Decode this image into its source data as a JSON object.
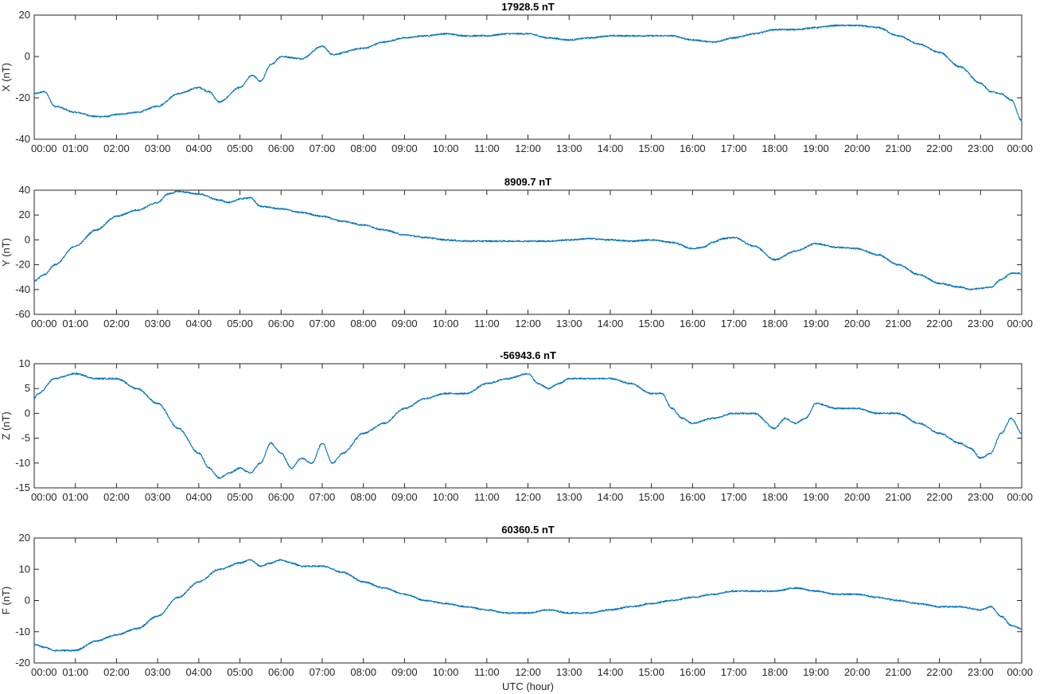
{
  "x_tick_labels": [
    "00:00",
    "01:00",
    "02:00",
    "03:00",
    "04:00",
    "05:00",
    "06:00",
    "07:00",
    "08:00",
    "09:00",
    "10:00",
    "11:00",
    "12:00",
    "13:00",
    "14:00",
    "15:00",
    "16:00",
    "17:00",
    "18:00",
    "19:00",
    "20:00",
    "21:00",
    "22:00",
    "23:00",
    "00:00"
  ],
  "xlabel": "UTC (hour)",
  "line_color": "#0072BD",
  "chart_data": [
    {
      "type": "line",
      "title": "17928.5 nT",
      "ylabel": "X (nT)",
      "xlim": [
        0,
        24
      ],
      "ylim": [
        -40,
        20
      ],
      "yticks": [
        -40,
        -20,
        0,
        20
      ],
      "x": [
        0,
        0.25,
        0.5,
        1,
        1.5,
        1.75,
        2,
        2.5,
        3,
        3.5,
        4,
        4.25,
        4.5,
        5,
        5.3,
        5.5,
        5.75,
        6,
        6.5,
        7,
        7.25,
        8,
        8.5,
        9,
        9.5,
        10,
        10.5,
        11,
        11.5,
        12,
        12.5,
        13,
        13.5,
        14,
        14.5,
        15,
        15.5,
        16,
        16.5,
        17,
        17.5,
        18,
        18.5,
        19,
        19.5,
        20,
        20.5,
        21,
        21.5,
        22,
        22.5,
        23,
        23.25,
        23.5,
        23.75,
        24
      ],
      "y": [
        -18,
        -17,
        -24,
        -27,
        -29,
        -29,
        -28,
        -27,
        -24,
        -18,
        -15,
        -17,
        -22,
        -15,
        -9,
        -12,
        -4,
        0,
        -1,
        5,
        1,
        4,
        7,
        9,
        10,
        11,
        10,
        10,
        11,
        11,
        9,
        8,
        9,
        10,
        10,
        10,
        10,
        8,
        7,
        9,
        11,
        13,
        13,
        14,
        15,
        15,
        14,
        10,
        6,
        2,
        -5,
        -13,
        -17,
        -18,
        -21,
        -31
      ]
    },
    {
      "type": "line",
      "title": "8909.7 nT",
      "ylabel": "Y (nT)",
      "xlim": [
        0,
        24
      ],
      "ylim": [
        -60,
        40
      ],
      "yticks": [
        -60,
        -40,
        -20,
        0,
        20,
        40
      ],
      "x": [
        0,
        0.25,
        0.5,
        1,
        1.5,
        2,
        2.5,
        3,
        3.25,
        3.5,
        4,
        4.5,
        4.75,
        5,
        5.25,
        5.5,
        6,
        6.5,
        7,
        7.5,
        8,
        8.5,
        9,
        9.5,
        10,
        10.5,
        11,
        11.5,
        12,
        12.5,
        13,
        13.5,
        14,
        14.5,
        15,
        15.5,
        16,
        16.25,
        16.5,
        16.75,
        17,
        17.5,
        18,
        18.5,
        19,
        19.5,
        20,
        20.5,
        21,
        21.5,
        22,
        22.5,
        22.75,
        23,
        23.25,
        23.5,
        23.75,
        24
      ],
      "y": [
        -33,
        -28,
        -20,
        -5,
        8,
        19,
        24,
        30,
        37,
        39,
        37,
        32,
        30,
        33,
        34,
        27,
        25,
        22,
        19,
        15,
        12,
        8,
        4,
        2,
        0,
        -1,
        -1,
        -1,
        -1,
        -1,
        0,
        1,
        0,
        -1,
        0,
        -2,
        -7,
        -6,
        -2,
        1,
        2,
        -5,
        -16,
        -9,
        -3,
        -6,
        -7,
        -12,
        -20,
        -28,
        -35,
        -38,
        -40,
        -39,
        -38,
        -32,
        -27,
        -27
      ]
    },
    {
      "type": "line",
      "title": "-56943.6 nT",
      "ylabel": "Z (nT)",
      "xlim": [
        0,
        24
      ],
      "ylim": [
        -15,
        10
      ],
      "yticks": [
        -15,
        -10,
        -5,
        0,
        5,
        10
      ],
      "x": [
        0,
        0.1,
        0.5,
        1,
        1.5,
        2,
        2.5,
        3,
        3.5,
        4,
        4.25,
        4.5,
        4.75,
        5,
        5.25,
        5.5,
        5.75,
        6,
        6.25,
        6.5,
        6.75,
        7,
        7.25,
        7.5,
        8,
        8.5,
        9,
        9.5,
        10,
        10.5,
        11,
        11.5,
        12,
        12.25,
        12.5,
        12.75,
        13,
        13.5,
        14,
        14.5,
        15,
        15.25,
        15.5,
        15.75,
        16,
        16.5,
        17,
        17.5,
        18,
        18.25,
        18.5,
        18.75,
        19,
        19.5,
        20,
        20.5,
        21,
        21.5,
        22,
        22.5,
        22.75,
        23,
        23.25,
        23.5,
        23.75,
        24
      ],
      "y": [
        3,
        4,
        7,
        8,
        7,
        7,
        5,
        2,
        -3,
        -8,
        -11,
        -13,
        -12,
        -11,
        -12,
        -10,
        -6,
        -8,
        -11,
        -9,
        -10,
        -6,
        -10,
        -8,
        -4,
        -2,
        1,
        3,
        4,
        4,
        6,
        7,
        8,
        6,
        5,
        6,
        7,
        7,
        7,
        6,
        4,
        4,
        1,
        -1,
        -2,
        -1,
        0,
        0,
        -3,
        -1,
        -2,
        -1,
        2,
        1,
        1,
        0,
        0,
        -2,
        -4,
        -6,
        -7,
        -9,
        -8,
        -4,
        -1,
        -4
      ]
    },
    {
      "type": "line",
      "title": "60360.5 nT",
      "ylabel": "F (nT)",
      "xlim": [
        0,
        24
      ],
      "ylim": [
        -20,
        20
      ],
      "yticks": [
        -20,
        -10,
        0,
        10,
        20
      ],
      "x": [
        0,
        0.25,
        0.5,
        1,
        1.5,
        2,
        2.5,
        3,
        3.5,
        4,
        4.5,
        5,
        5.25,
        5.5,
        5.75,
        6,
        6.25,
        6.5,
        7,
        7.5,
        8,
        8.5,
        9,
        9.5,
        10,
        10.5,
        11,
        11.5,
        12,
        12.5,
        13,
        13.5,
        14,
        14.5,
        15,
        15.5,
        16,
        16.5,
        17,
        17.5,
        18,
        18.5,
        19,
        19.5,
        20,
        20.5,
        21,
        21.5,
        22,
        22.5,
        23,
        23.25,
        23.5,
        23.75,
        24
      ],
      "y": [
        -14,
        -15,
        -16,
        -16,
        -13,
        -11,
        -9,
        -5,
        1,
        6,
        10,
        12,
        13,
        11,
        12,
        13,
        12,
        11,
        11,
        9,
        6,
        4,
        2,
        0,
        -1,
        -2,
        -3,
        -4,
        -4,
        -3,
        -4,
        -4,
        -3,
        -2,
        -1,
        0,
        1,
        2,
        3,
        3,
        3,
        4,
        3,
        2,
        2,
        1,
        0,
        -1,
        -2,
        -2,
        -3,
        -2,
        -5,
        -8,
        -9
      ]
    }
  ]
}
